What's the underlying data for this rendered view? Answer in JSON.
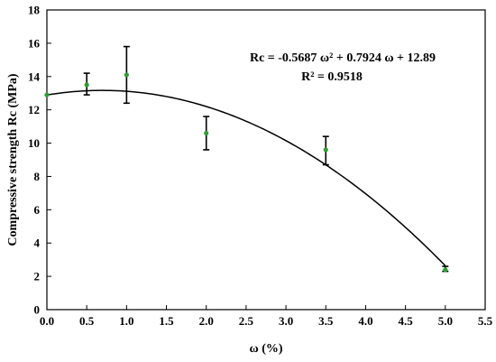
{
  "chart_data": {
    "type": "scatter",
    "xlabel": "ω (%)",
    "ylabel": "Compressive strength Rc (MPa)",
    "xlim": [
      0,
      5.5
    ],
    "ylim": [
      0,
      18
    ],
    "xticks": [
      "0.0",
      "0.5",
      "1.0",
      "1.5",
      "2.0",
      "2.5",
      "3.0",
      "3.5",
      "4.0",
      "4.5",
      "5.0",
      "5.5"
    ],
    "yticks": [
      "0",
      "2",
      "4",
      "6",
      "8",
      "10",
      "12",
      "14",
      "16",
      "18"
    ],
    "grid": false,
    "legend": "none",
    "point_color": "#2ca02c",
    "points": [
      {
        "x": 0.0,
        "y": 12.9,
        "err_low": 12.9,
        "err_high": 12.9
      },
      {
        "x": 0.5,
        "y": 13.5,
        "err_low": 12.9,
        "err_high": 14.2
      },
      {
        "x": 1.0,
        "y": 14.1,
        "err_low": 12.4,
        "err_high": 15.8
      },
      {
        "x": 2.0,
        "y": 10.6,
        "err_low": 9.6,
        "err_high": 11.6
      },
      {
        "x": 3.5,
        "y": 9.6,
        "err_low": 8.7,
        "err_high": 10.4
      },
      {
        "x": 5.0,
        "y": 2.4,
        "err_low": 2.3,
        "err_high": 2.6
      }
    ],
    "fit": {
      "type": "polynomial",
      "coefficients": [
        -0.5687,
        0.7924,
        12.89
      ],
      "x_range": [
        0,
        5.0
      ],
      "equation": "Rc = -0.5687 ω² + 0.7924 ω + 12.89",
      "r_squared": "R² = 0.9518"
    }
  }
}
